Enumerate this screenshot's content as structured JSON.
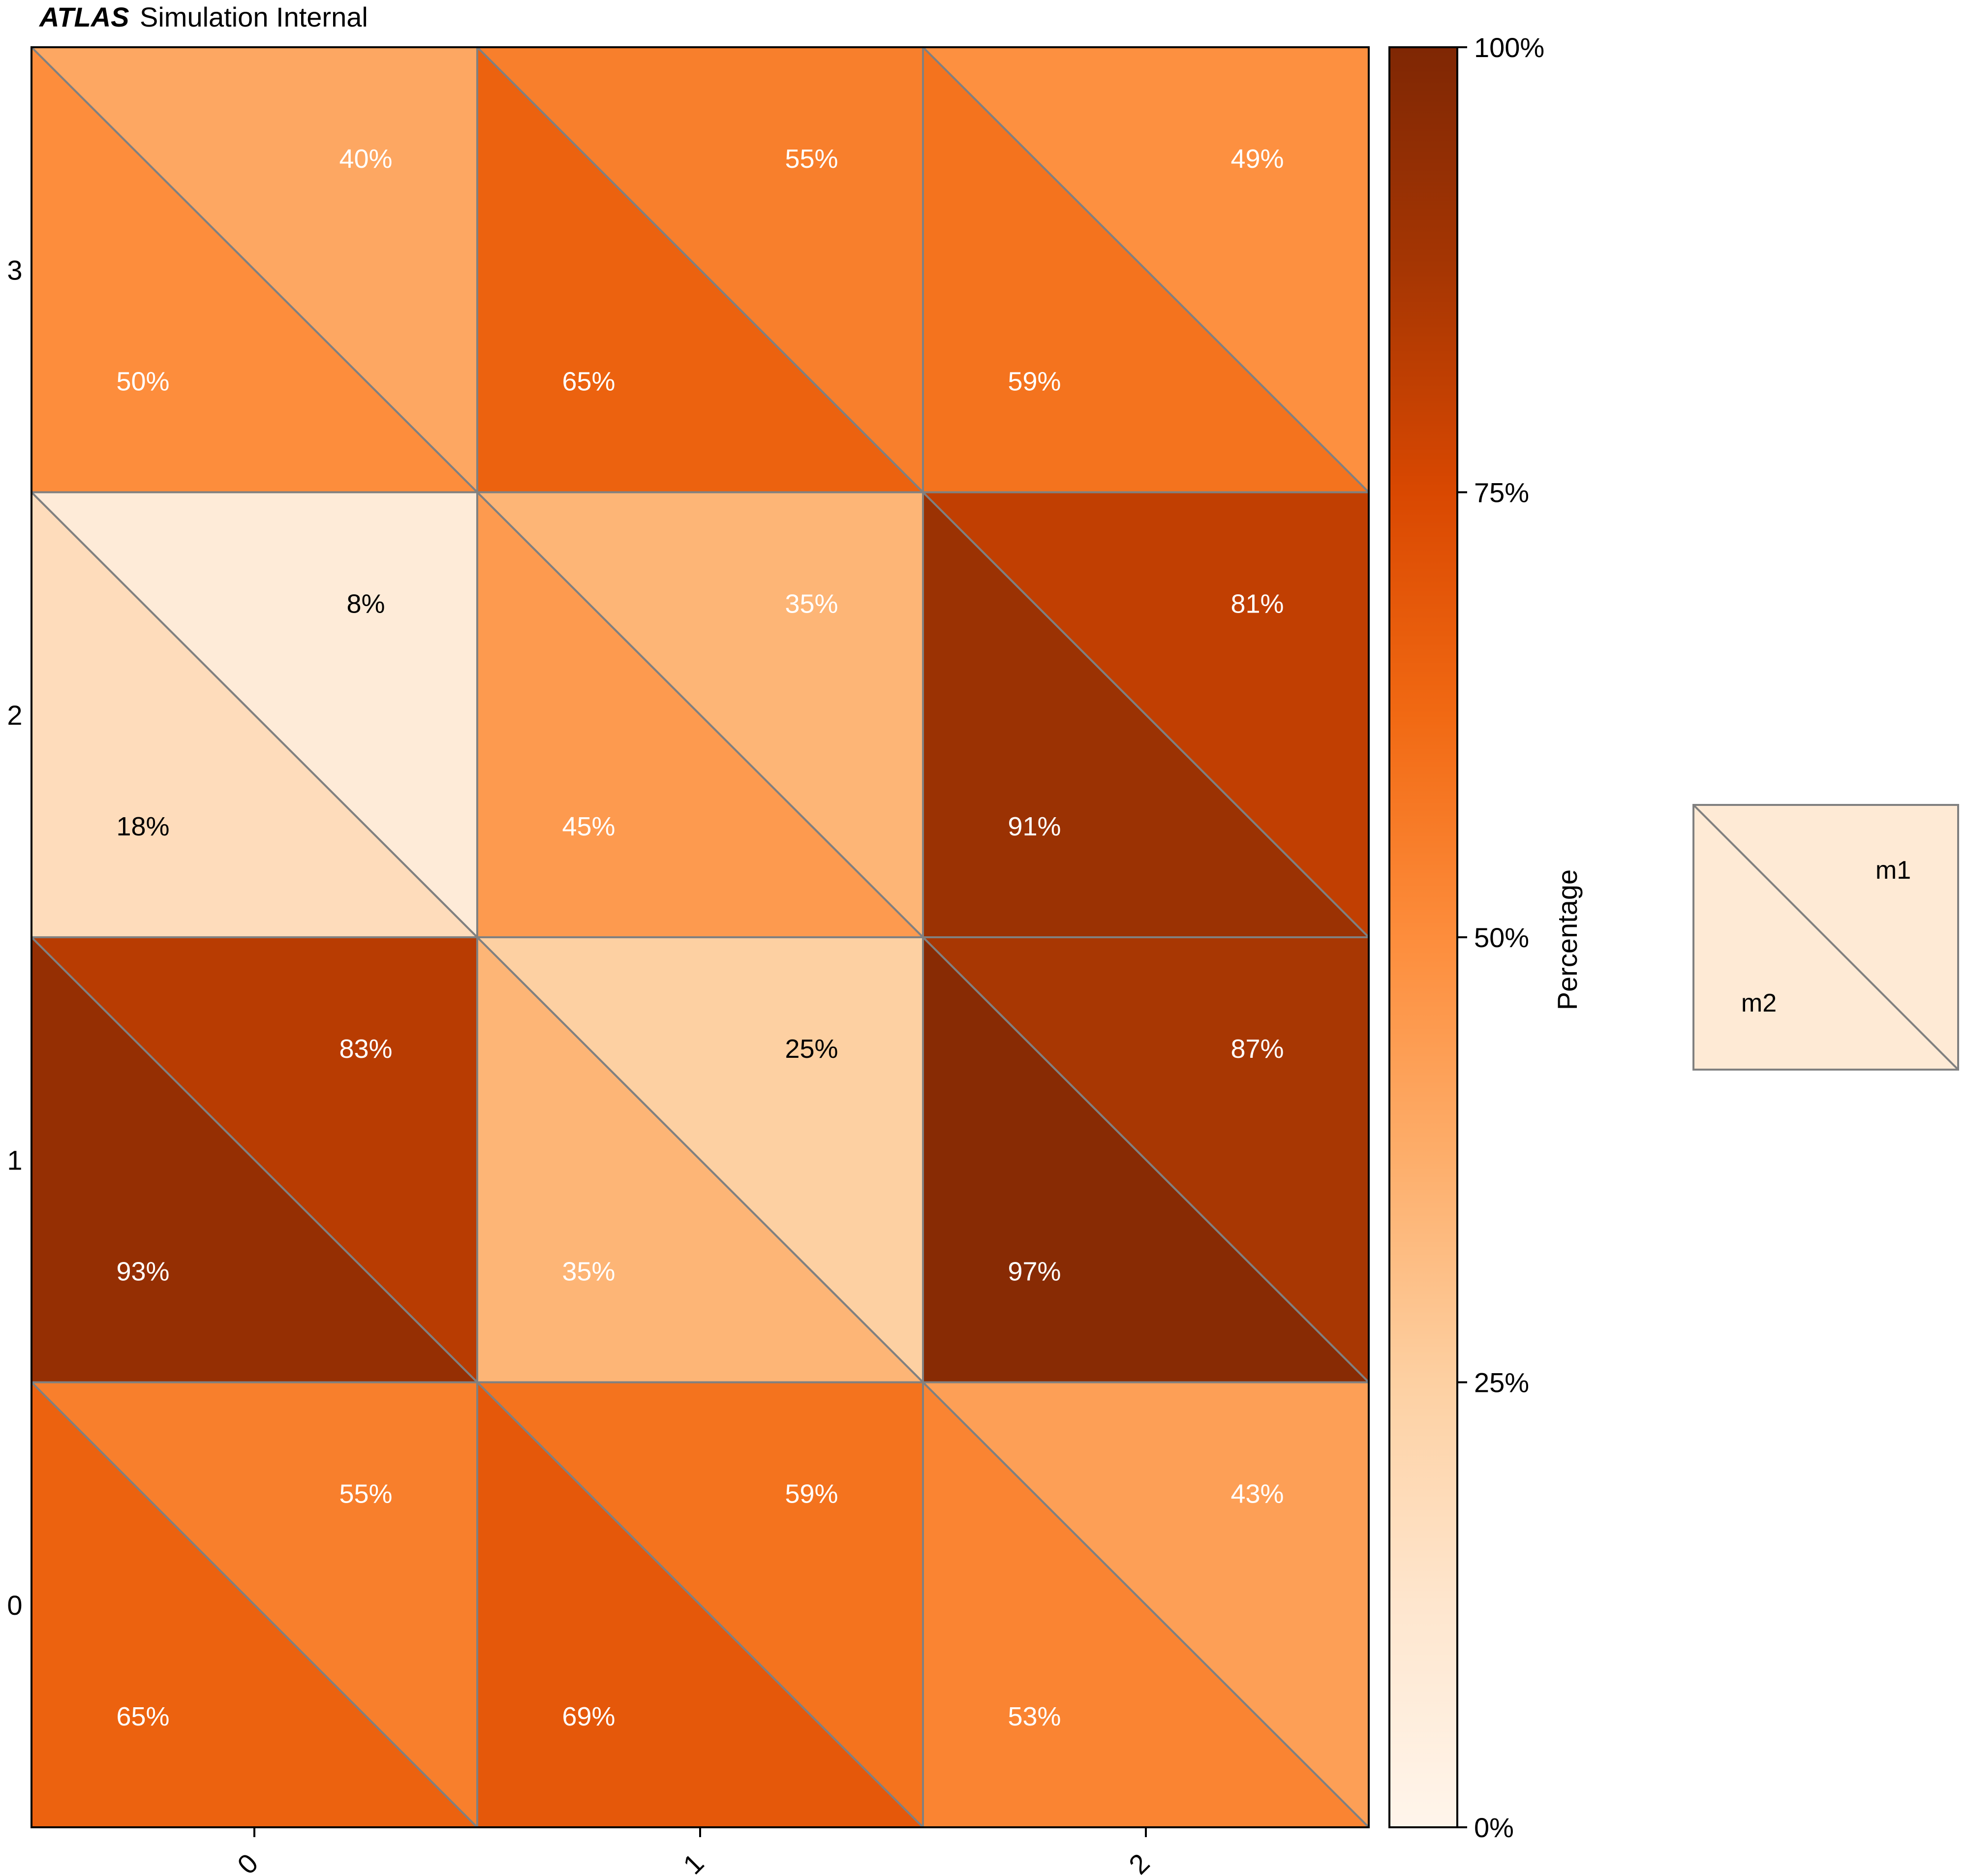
{
  "header": {
    "brand": "ATLAS",
    "subtitle": "Simulation Internal"
  },
  "colorbar": {
    "label": "Percentage",
    "ticks": [
      "0%",
      "25%",
      "50%",
      "75%",
      "100%"
    ]
  },
  "legend": {
    "upper": "m1",
    "lower": "m2"
  },
  "colors": {
    "grid_line": "#808080",
    "text_dark": "#000000",
    "text_light": "#ffffff"
  },
  "chart_data": {
    "type": "heatmap",
    "variant": "split-cell (upper-right triangle = m1, lower-left triangle = m2)",
    "x_categories": [
      "0",
      "1",
      "2"
    ],
    "y_categories": [
      "0",
      "1",
      "2",
      "3"
    ],
    "series": [
      {
        "name": "m1",
        "values": [
          [
            55,
            59,
            43
          ],
          [
            83,
            25,
            87
          ],
          [
            8,
            35,
            81
          ],
          [
            40,
            55,
            49
          ]
        ]
      },
      {
        "name": "m2",
        "values": [
          [
            65,
            69,
            53
          ],
          [
            93,
            35,
            97
          ],
          [
            18,
            45,
            91
          ],
          [
            50,
            65,
            59
          ]
        ]
      }
    ],
    "value_range": [
      0,
      100
    ],
    "value_unit": "%",
    "colormap": "Oranges",
    "grid": false
  }
}
